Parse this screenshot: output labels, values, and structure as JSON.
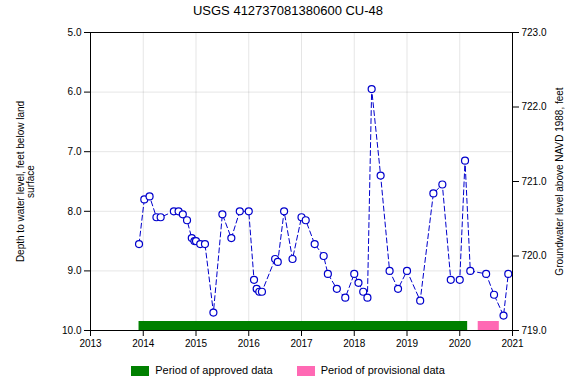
{
  "chart_data": {
    "type": "line",
    "title": "USGS 412737081380600 CU-48",
    "ylabel": "Depth to water level, feet below land\nsurface",
    "y2label": "Groundwater level above NAVD 1988, feet",
    "x": [
      2013.92,
      2014.02,
      2014.12,
      2014.25,
      2014.33,
      2014.58,
      2014.67,
      2014.75,
      2014.83,
      2014.92,
      2014.97,
      2015.0,
      2015.08,
      2015.17,
      2015.33,
      2015.5,
      2015.67,
      2015.83,
      2016.0,
      2016.1,
      2016.15,
      2016.2,
      2016.25,
      2016.5,
      2016.55,
      2016.67,
      2016.83,
      2017.0,
      2017.08,
      2017.25,
      2017.42,
      2017.5,
      2017.67,
      2017.83,
      2018.0,
      2018.08,
      2018.17,
      2018.25,
      2018.33,
      2018.5,
      2018.67,
      2018.83,
      2019.0,
      2019.25,
      2019.5,
      2019.67,
      2019.83,
      2020.0,
      2020.1,
      2020.2,
      2020.5,
      2020.65,
      2020.83,
      2020.92
    ],
    "values": [
      8.55,
      7.8,
      7.75,
      8.1,
      8.1,
      8.0,
      8.0,
      8.05,
      8.15,
      8.45,
      8.5,
      8.5,
      8.55,
      8.55,
      9.7,
      8.05,
      8.45,
      8.0,
      8.0,
      9.15,
      9.3,
      9.35,
      9.35,
      8.8,
      8.85,
      8.0,
      8.8,
      8.1,
      8.15,
      8.55,
      8.75,
      9.05,
      9.3,
      9.45,
      9.05,
      9.2,
      9.35,
      9.45,
      5.95,
      7.4,
      9.0,
      9.3,
      9.0,
      9.5,
      7.7,
      7.55,
      9.15,
      9.15,
      7.15,
      9.0,
      9.05,
      9.4,
      9.75,
      9.05
    ],
    "color": "#0000CC",
    "line_style": "dashed",
    "marker": "circle",
    "xlim": [
      2013,
      2021
    ],
    "xticks": [
      2013,
      2014,
      2015,
      2016,
      2017,
      2018,
      2019,
      2020,
      2021
    ],
    "ylim": [
      10.0,
      5.0
    ],
    "yticks": [
      {
        "value": 5.0,
        "label": "5.0"
      },
      {
        "value": 6.0,
        "label": "6.0"
      },
      {
        "value": 7.0,
        "label": "7.0"
      },
      {
        "value": 8.0,
        "label": "8.0"
      },
      {
        "value": 9.0,
        "label": "9.0"
      },
      {
        "value": 10.0,
        "label": "10.0"
      }
    ],
    "y2lim": [
      719.0,
      723.0
    ],
    "y2ticks": [
      {
        "value": 719.0,
        "label": "719.0"
      },
      {
        "value": 720.0,
        "label": "720.0"
      },
      {
        "value": 721.0,
        "label": "721.0"
      },
      {
        "value": 722.0,
        "label": "722.0"
      },
      {
        "value": 723.0,
        "label": "723.0"
      }
    ],
    "periods": [
      {
        "name": "Period of approved data",
        "start": 2013.92,
        "end": 2020.15,
        "color": "#008000"
      },
      {
        "name": "Period of provisional data",
        "start": 2020.35,
        "end": 2020.75,
        "color": "#FF69B4"
      }
    ],
    "grid": true,
    "legend": "bottom"
  }
}
